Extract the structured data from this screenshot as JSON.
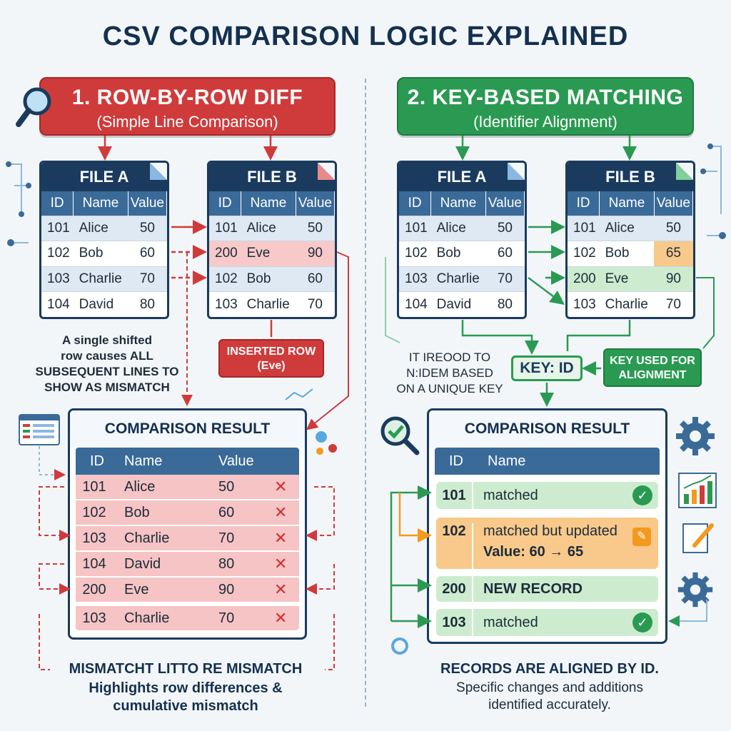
{
  "title": "CSV COMPARISON LOGIC EXPLAINED",
  "left": {
    "banner_title": "1. ROW-BY-ROW DIFF",
    "banner_subtitle": "(Simple Line Comparison)",
    "file_a": {
      "name": "FILE A",
      "columns": [
        "ID",
        "Name",
        "Value"
      ],
      "rows": [
        [
          "101",
          "Alice",
          "50"
        ],
        [
          "102",
          "Bob",
          "60"
        ],
        [
          "103",
          "Charlie",
          "70"
        ],
        [
          "104",
          "David",
          "80"
        ]
      ]
    },
    "file_b": {
      "name": "FILE B",
      "columns": [
        "ID",
        "Name",
        "Value"
      ],
      "rows": [
        [
          "101",
          "Alice",
          "50"
        ],
        [
          "200",
          "Eve",
          "90"
        ],
        [
          "102",
          "Bob",
          "60"
        ],
        [
          "103",
          "Charlie",
          "70"
        ]
      ]
    },
    "note": [
      "A single shifted",
      "row causes ALL",
      "SUBSEQUENT LINES TO",
      "SHOW AS MISMATCH"
    ],
    "inserted_tag": [
      "INSERTED ROW",
      "(Eve)"
    ],
    "result": {
      "title": "COMPARISON RESULT",
      "columns": [
        "ID",
        "Name",
        "Value"
      ],
      "rows": [
        [
          "101",
          "Alice",
          "50"
        ],
        [
          "102",
          "Bob",
          "60"
        ],
        [
          "103",
          "Charlie",
          "70"
        ],
        [
          "104",
          "David",
          "80"
        ],
        [
          "200",
          "Eve",
          "90"
        ],
        [
          "103",
          "Charlie",
          "70"
        ]
      ],
      "mark": "✕"
    },
    "caption_line1": "MISMATCHT LITTO RE MISMATCH",
    "caption_line2": "Highlights row differences &",
    "caption_line3": "cumulative mismatch"
  },
  "right": {
    "banner_title": "2. KEY-BASED MATCHING",
    "banner_subtitle": "(Identifier Alignment)",
    "file_a": {
      "name": "FILE A",
      "columns": [
        "ID",
        "Name",
        "Value"
      ],
      "rows": [
        [
          "101",
          "Alice",
          "50"
        ],
        [
          "102",
          "Bob",
          "60"
        ],
        [
          "103",
          "Charlie",
          "70"
        ],
        [
          "104",
          "David",
          "80"
        ]
      ]
    },
    "file_b": {
      "name": "FILE B",
      "columns": [
        "ID",
        "Name",
        "Value"
      ],
      "rows": [
        [
          "101",
          "Alice",
          "50"
        ],
        [
          "102",
          "Bob",
          "65"
        ],
        [
          "200",
          "Eve",
          "90"
        ],
        [
          "103",
          "Charlie",
          "70"
        ]
      ]
    },
    "note": [
      "IT IREOOD TO",
      "N:IDEM BASED",
      "ON A UNIQUE KEY"
    ],
    "key_tag": "KEY: ID",
    "key_note": [
      "KEY USED FOR",
      "ALIGNMENT"
    ],
    "result": {
      "title": "COMPARISON RESULT",
      "columns": [
        "ID",
        "Name"
      ],
      "rows": [
        {
          "id": "101",
          "text": "matched",
          "status": "ok"
        },
        {
          "id": "102",
          "text": "matched but updated",
          "detail": "Value: 60 → 65",
          "status": "updated"
        },
        {
          "id": "200",
          "text": "NEW RECORD",
          "status": "new"
        },
        {
          "id": "103",
          "text": "matched",
          "status": "ok"
        }
      ],
      "check": "✓",
      "pencil": "✎"
    },
    "caption_line1": "RECORDS ARE ALIGNED BY ID.",
    "caption_line2": "Specific changes and additions",
    "caption_line3": "identified accurately."
  },
  "colors": {
    "red": "#cf3b3b",
    "green": "#2a9a52",
    "navy": "#1a3b5e",
    "orange": "#f39a1e"
  }
}
